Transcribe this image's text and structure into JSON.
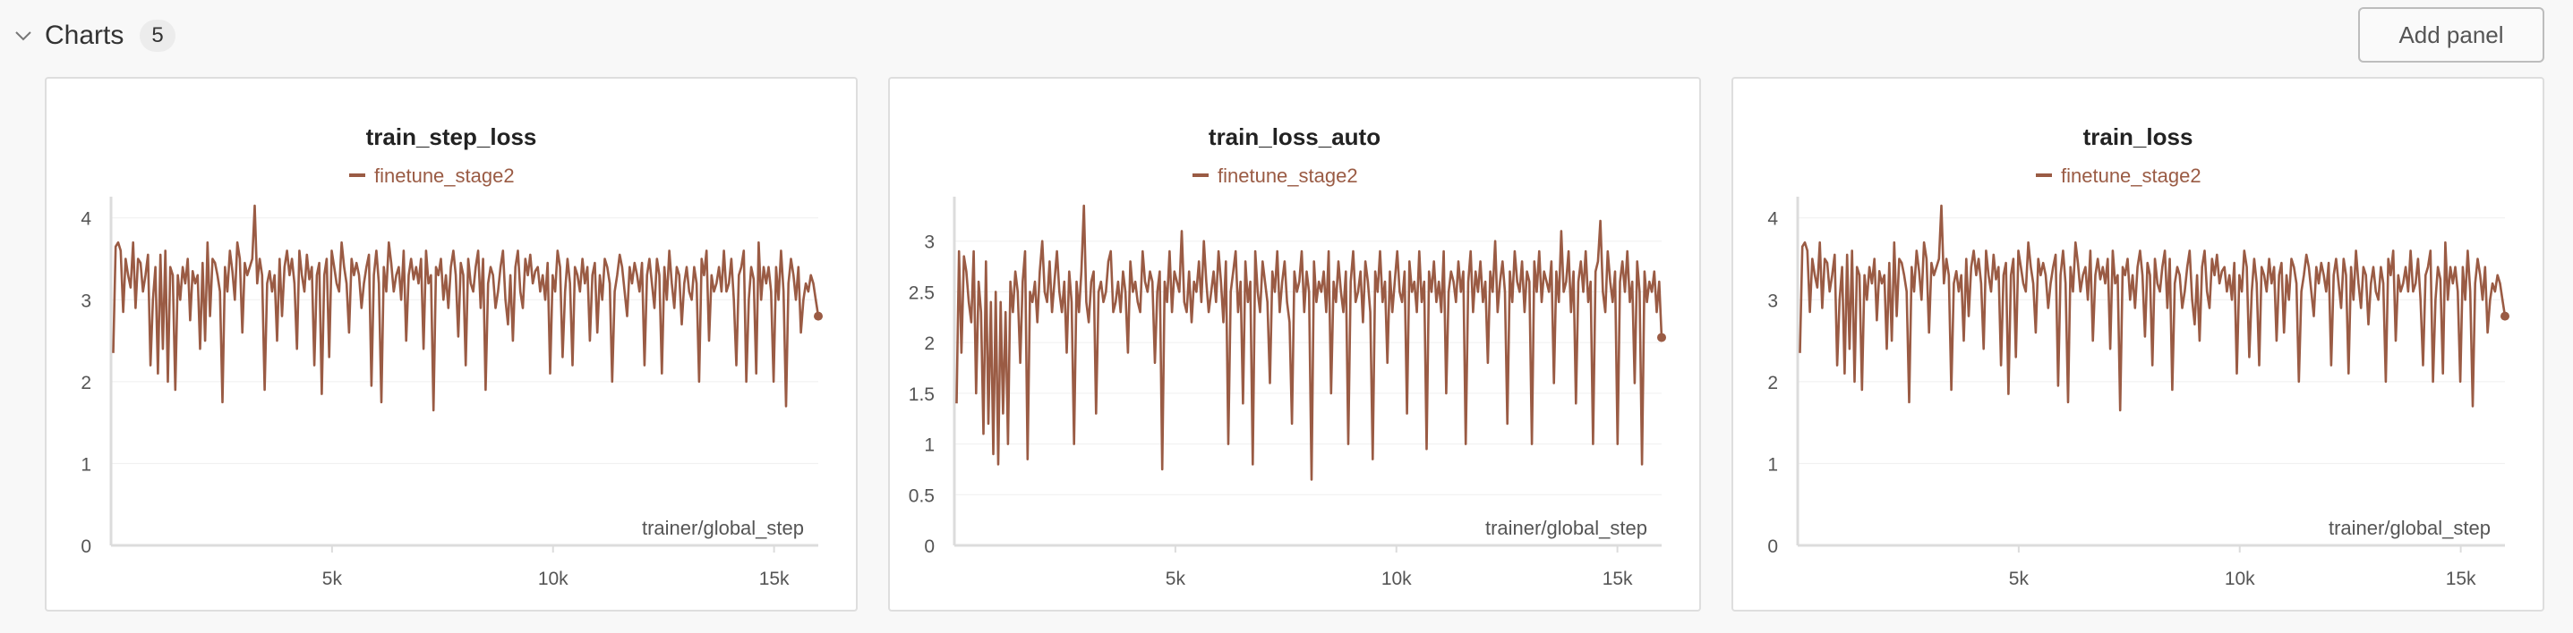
{
  "section": {
    "title": "Charts",
    "count": "5",
    "add_panel_label": "Add panel",
    "chevron_icon": "chevron-down-icon"
  },
  "colors": {
    "series": "#9a5b44",
    "axis": "#dcdcdc",
    "grid": "#efefef",
    "tick_text": "#555555"
  },
  "chart_data": [
    {
      "type": "line",
      "title": "train_step_loss",
      "legend": "finetune_stage2",
      "xlabel": "trainer/global_step",
      "ylabel": "",
      "xlim": [
        0,
        16000
      ],
      "ylim": [
        0,
        4.15
      ],
      "x_ticks": [
        5000,
        10000,
        15000
      ],
      "x_tick_labels": [
        "5k",
        "10k",
        "15k"
      ],
      "y_ticks": [
        0,
        1,
        2,
        3,
        4
      ],
      "y_tick_labels": [
        "0",
        "1",
        "2",
        "3",
        "4"
      ],
      "grid": true,
      "series": [
        {
          "name": "finetune_stage2",
          "x_start": 50,
          "x_end": 16000,
          "values": [
            2.35,
            3.65,
            3.7,
            3.6,
            2.85,
            3.5,
            3.3,
            3.15,
            3.7,
            2.9,
            3.5,
            3.45,
            3.1,
            3.3,
            3.55,
            2.2,
            3.0,
            3.4,
            2.1,
            3.55,
            2.4,
            3.6,
            2.0,
            3.4,
            3.3,
            1.9,
            3.3,
            3.0,
            3.4,
            3.2,
            3.5,
            2.75,
            3.35,
            3.2,
            3.3,
            2.4,
            3.45,
            2.5,
            3.7,
            2.8,
            3.5,
            3.45,
            3.3,
            3.1,
            1.75,
            3.4,
            3.1,
            3.6,
            3.35,
            3.0,
            3.7,
            3.5,
            2.6,
            3.45,
            3.3,
            3.4,
            3.5,
            4.15,
            3.2,
            3.5,
            3.3,
            1.9,
            3.2,
            3.35,
            3.1,
            3.3,
            2.5,
            3.5,
            2.8,
            3.4,
            3.6,
            3.3,
            3.5,
            3.2,
            2.4,
            3.6,
            3.3,
            3.1,
            3.55,
            3.25,
            3.4,
            2.2,
            3.3,
            3.45,
            1.85,
            3.3,
            3.5,
            2.3,
            3.6,
            3.4,
            3.2,
            3.1,
            3.7,
            3.4,
            3.2,
            2.6,
            3.5,
            3.3,
            3.45,
            3.3,
            2.9,
            3.2,
            3.4,
            3.55,
            1.95,
            3.3,
            3.6,
            3.2,
            1.75,
            3.4,
            3.1,
            3.7,
            3.45,
            3.1,
            3.3,
            3.4,
            3.0,
            3.6,
            2.5,
            3.3,
            3.5,
            3.25,
            3.4,
            3.2,
            3.5,
            2.4,
            3.6,
            3.2,
            3.3,
            1.65,
            3.4,
            3.3,
            3.5,
            3.0,
            3.3,
            2.9,
            3.4,
            3.6,
            3.3,
            2.55,
            3.45,
            3.3,
            2.2,
            3.5,
            3.2,
            3.1,
            3.4,
            3.6,
            2.9,
            3.5,
            1.9,
            3.2,
            3.4,
            3.3,
            2.9,
            3.1,
            3.4,
            3.6,
            3.0,
            2.7,
            3.3,
            2.5,
            3.4,
            3.6,
            3.1,
            2.9,
            3.5,
            3.3,
            3.55,
            3.2,
            3.35,
            3.4,
            3.1,
            3.3,
            3.0,
            3.45,
            2.1,
            3.3,
            3.1,
            3.6,
            3.4,
            2.3,
            3.1,
            3.5,
            3.2,
            2.2,
            3.4,
            3.3,
            3.1,
            3.5,
            3.2,
            3.4,
            2.5,
            3.3,
            3.45,
            2.6,
            3.3,
            3.0,
            3.5,
            3.4,
            3.2,
            2.0,
            3.1,
            3.3,
            3.55,
            3.4,
            3.1,
            2.8,
            3.4,
            3.2,
            3.45,
            3.3,
            3.1,
            3.45,
            2.2,
            3.3,
            3.5,
            3.2,
            2.9,
            3.5,
            3.3,
            2.1,
            3.4,
            3.0,
            3.6,
            3.2,
            2.9,
            3.4,
            3.3,
            2.7,
            3.2,
            3.4,
            3.1,
            3.0,
            3.4,
            3.2,
            2.0,
            3.5,
            3.3,
            3.6,
            2.5,
            3.3,
            3.1,
            3.2,
            3.4,
            3.1,
            3.6,
            3.1,
            3.2,
            3.5,
            3.0,
            2.2,
            3.3,
            3.4,
            3.6,
            2.0,
            3.0,
            3.4,
            3.25,
            2.1,
            3.7,
            3.0,
            3.4,
            3.2,
            3.4,
            3.1,
            2.0,
            3.4,
            3.0,
            3.6,
            3.1,
            1.7,
            3.2,
            3.5,
            3.3,
            3.0,
            3.4,
            2.6,
            3.0,
            3.2,
            3.1,
            3.3,
            3.2,
            3.0,
            2.8
          ]
        }
      ]
    },
    {
      "type": "line",
      "title": "train_loss_auto",
      "legend": "finetune_stage2",
      "xlabel": "trainer/global_step",
      "ylabel": "",
      "xlim": [
        0,
        16000
      ],
      "ylim": [
        0,
        3.35
      ],
      "x_ticks": [
        5000,
        10000,
        15000
      ],
      "x_tick_labels": [
        "5k",
        "10k",
        "15k"
      ],
      "y_ticks": [
        0,
        0.5,
        1,
        1.5,
        2,
        2.5,
        3
      ],
      "y_tick_labels": [
        "0",
        "0.5",
        "1",
        "1.5",
        "2",
        "2.5",
        "3"
      ],
      "grid": true,
      "series": [
        {
          "name": "finetune_stage2",
          "x_start": 50,
          "x_end": 16000,
          "values": [
            1.4,
            2.9,
            1.9,
            2.85,
            2.7,
            2.4,
            2.2,
            2.9,
            1.5,
            2.6,
            2.3,
            1.1,
            2.8,
            1.2,
            2.4,
            0.9,
            2.5,
            0.8,
            2.4,
            1.3,
            2.3,
            1.0,
            2.6,
            2.3,
            2.7,
            2.5,
            1.8,
            2.6,
            2.9,
            0.85,
            2.5,
            2.4,
            2.6,
            2.2,
            2.7,
            3.0,
            2.5,
            2.4,
            2.8,
            2.3,
            2.6,
            2.9,
            2.5,
            2.3,
            2.6,
            1.9,
            2.7,
            2.4,
            1.0,
            2.6,
            2.3,
            2.7,
            3.35,
            2.4,
            2.2,
            2.6,
            2.7,
            1.3,
            2.5,
            2.6,
            2.4,
            2.5,
            2.8,
            2.9,
            2.3,
            2.4,
            2.6,
            2.3,
            2.7,
            2.5,
            1.9,
            2.8,
            2.5,
            2.6,
            2.4,
            2.3,
            2.9,
            2.6,
            2.5,
            2.7,
            2.6,
            1.8,
            2.5,
            2.7,
            0.75,
            2.6,
            2.4,
            2.9,
            2.3,
            2.7,
            2.6,
            2.5,
            3.1,
            2.4,
            2.3,
            2.7,
            2.2,
            2.6,
            2.5,
            2.8,
            2.4,
            3.0,
            2.6,
            2.3,
            2.5,
            2.7,
            2.4,
            2.9,
            2.6,
            2.2,
            2.8,
            1.0,
            2.5,
            2.7,
            2.9,
            2.3,
            2.6,
            1.4,
            2.8,
            2.4,
            2.6,
            0.8,
            2.9,
            2.5,
            2.3,
            2.8,
            2.6,
            2.4,
            1.6,
            2.7,
            2.5,
            2.9,
            2.3,
            2.6,
            2.8,
            2.4,
            2.2,
            1.2,
            2.7,
            2.5,
            2.6,
            2.9,
            2.3,
            2.7,
            2.5,
            0.65,
            2.8,
            2.4,
            2.6,
            2.5,
            2.7,
            2.3,
            2.9,
            1.5,
            2.6,
            2.4,
            2.8,
            2.5,
            2.3,
            2.7,
            1.0,
            2.6,
            2.9,
            2.4,
            2.5,
            2.7,
            2.2,
            2.8,
            2.6,
            2.3,
            0.85,
            2.7,
            2.5,
            2.9,
            2.4,
            2.6,
            1.8,
            2.7,
            2.3,
            2.6,
            2.9,
            2.5,
            2.4,
            2.7,
            1.3,
            2.8,
            2.5,
            2.6,
            2.3,
            2.9,
            2.4,
            2.6,
            0.95,
            2.7,
            2.5,
            2.8,
            2.4,
            2.6,
            2.3,
            2.9,
            1.5,
            2.5,
            2.7,
            2.6,
            2.4,
            2.8,
            2.5,
            2.7,
            1.0,
            2.6,
            2.9,
            2.3,
            2.7,
            2.5,
            2.8,
            2.4,
            2.6,
            1.8,
            2.7,
            2.5,
            3.0,
            2.3,
            2.6,
            2.8,
            2.5,
            1.2,
            2.7,
            2.4,
            2.9,
            2.6,
            2.5,
            2.8,
            2.3,
            2.7,
            2.6,
            1.0,
            2.8,
            2.5,
            2.9,
            2.4,
            2.7,
            2.6,
            2.5,
            2.8,
            1.6,
            2.7,
            2.4,
            3.1,
            2.5,
            2.6,
            2.9,
            2.3,
            2.7,
            1.4,
            2.6,
            2.8,
            2.5,
            2.9,
            2.4,
            2.6,
            1.0,
            2.7,
            2.8,
            3.2,
            2.5,
            2.3,
            2.9,
            2.6,
            2.4,
            2.7,
            1.0,
            2.6,
            2.8,
            2.5,
            2.9,
            2.4,
            2.6,
            1.6,
            2.8,
            2.5,
            0.8,
            2.7,
            2.4,
            2.6,
            2.5,
            2.7,
            2.3,
            2.6,
            2.05
          ]
        }
      ]
    },
    {
      "type": "line",
      "title": "train_loss",
      "legend": "finetune_stage2",
      "xlabel": "trainer/global_step",
      "ylabel": "",
      "xlim": [
        0,
        16000
      ],
      "ylim": [
        0,
        4.15
      ],
      "x_ticks": [
        5000,
        10000,
        15000
      ],
      "x_tick_labels": [
        "5k",
        "10k",
        "15k"
      ],
      "y_ticks": [
        0,
        1,
        2,
        3,
        4
      ],
      "y_tick_labels": [
        "0",
        "1",
        "2",
        "3",
        "4"
      ],
      "grid": true,
      "series": [
        {
          "name": "finetune_stage2",
          "x_start": 50,
          "x_end": 16000,
          "values": [
            2.35,
            3.65,
            3.7,
            3.6,
            2.85,
            3.5,
            3.3,
            3.15,
            3.7,
            2.9,
            3.5,
            3.45,
            3.1,
            3.3,
            3.55,
            2.2,
            3.0,
            3.4,
            2.1,
            3.55,
            2.4,
            3.6,
            2.0,
            3.4,
            3.3,
            1.9,
            3.3,
            3.0,
            3.4,
            3.2,
            3.5,
            2.75,
            3.35,
            3.2,
            3.3,
            2.4,
            3.45,
            2.5,
            3.7,
            2.8,
            3.5,
            3.45,
            3.3,
            3.1,
            1.75,
            3.4,
            3.1,
            3.6,
            3.35,
            3.0,
            3.7,
            3.5,
            2.6,
            3.45,
            3.3,
            3.4,
            3.5,
            4.15,
            3.2,
            3.5,
            3.3,
            1.9,
            3.2,
            3.35,
            3.1,
            3.3,
            2.5,
            3.5,
            2.8,
            3.4,
            3.6,
            3.3,
            3.5,
            3.2,
            2.4,
            3.6,
            3.3,
            3.1,
            3.55,
            3.25,
            3.4,
            2.2,
            3.3,
            3.45,
            1.85,
            3.3,
            3.5,
            2.3,
            3.6,
            3.4,
            3.2,
            3.1,
            3.7,
            3.4,
            3.2,
            2.6,
            3.5,
            3.3,
            3.45,
            3.3,
            2.9,
            3.2,
            3.4,
            3.55,
            1.95,
            3.3,
            3.6,
            3.2,
            1.75,
            3.4,
            3.1,
            3.7,
            3.45,
            3.1,
            3.3,
            3.4,
            3.0,
            3.6,
            2.5,
            3.3,
            3.5,
            3.25,
            3.4,
            3.2,
            3.5,
            2.4,
            3.6,
            3.2,
            3.3,
            1.65,
            3.4,
            3.3,
            3.5,
            3.0,
            3.3,
            2.9,
            3.4,
            3.6,
            3.3,
            2.55,
            3.45,
            3.3,
            2.2,
            3.5,
            3.2,
            3.1,
            3.4,
            3.6,
            2.9,
            3.5,
            1.9,
            3.2,
            3.4,
            3.3,
            2.9,
            3.1,
            3.4,
            3.6,
            3.0,
            2.7,
            3.3,
            2.5,
            3.4,
            3.6,
            3.1,
            2.9,
            3.5,
            3.3,
            3.55,
            3.2,
            3.35,
            3.4,
            3.1,
            3.3,
            3.0,
            3.45,
            2.1,
            3.3,
            3.1,
            3.6,
            3.4,
            2.3,
            3.1,
            3.5,
            3.2,
            2.2,
            3.4,
            3.3,
            3.1,
            3.5,
            3.2,
            3.4,
            2.5,
            3.3,
            3.45,
            2.6,
            3.3,
            3.0,
            3.5,
            3.4,
            3.2,
            2.0,
            3.1,
            3.3,
            3.55,
            3.4,
            3.1,
            2.8,
            3.4,
            3.2,
            3.45,
            3.3,
            3.1,
            3.45,
            2.2,
            3.3,
            3.5,
            3.2,
            2.9,
            3.5,
            3.3,
            2.1,
            3.4,
            3.0,
            3.6,
            3.2,
            2.9,
            3.4,
            3.3,
            2.7,
            3.2,
            3.4,
            3.1,
            3.0,
            3.4,
            3.2,
            2.0,
            3.5,
            3.3,
            3.6,
            2.5,
            3.3,
            3.1,
            3.2,
            3.4,
            3.1,
            3.6,
            3.1,
            3.2,
            3.5,
            3.0,
            2.2,
            3.3,
            3.4,
            3.6,
            2.0,
            3.0,
            3.4,
            3.25,
            2.1,
            3.7,
            3.0,
            3.4,
            3.2,
            3.4,
            3.1,
            2.0,
            3.4,
            3.0,
            3.6,
            3.1,
            1.7,
            3.2,
            3.5,
            3.3,
            3.0,
            3.4,
            2.6,
            3.0,
            3.2,
            3.1,
            3.3,
            3.2,
            3.0,
            2.8
          ]
        }
      ]
    }
  ]
}
